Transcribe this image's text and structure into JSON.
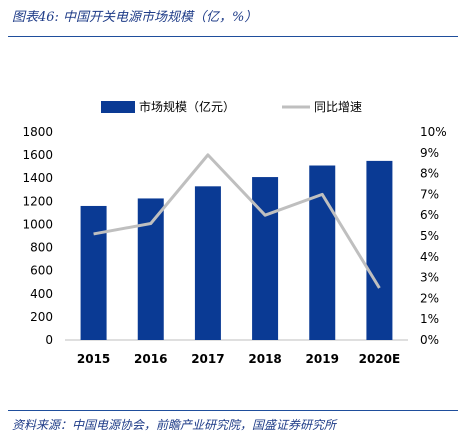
{
  "figure": {
    "title": "图表46: 中国开关电源市场规模（亿，%）",
    "source": "资料来源：中国电源协会，前瞻产业研究院，国盛证券研究所"
  },
  "chart_data": {
    "type": "bar",
    "categories": [
      "2015",
      "2016",
      "2017",
      "2018",
      "2019",
      "2020E"
    ],
    "series": [
      {
        "name": "市场规模（亿元）",
        "type": "bar",
        "axis": "left",
        "color": "#0a3a94",
        "values": [
          1160,
          1225,
          1330,
          1410,
          1510,
          1550
        ]
      },
      {
        "name": "同比增速",
        "type": "line",
        "axis": "right",
        "color": "#bfbfbf",
        "values": [
          5.1,
          5.6,
          8.9,
          6.0,
          7.0,
          2.5
        ]
      }
    ],
    "y_left": {
      "min": 0,
      "max": 1800,
      "step": 200,
      "ticks": [
        "0",
        "200",
        "400",
        "600",
        "800",
        "1000",
        "1200",
        "1400",
        "1600",
        "1800"
      ]
    },
    "y_right": {
      "min": 0,
      "max": 10,
      "step": 1,
      "ticks": [
        "0%",
        "1%",
        "2%",
        "3%",
        "4%",
        "5%",
        "6%",
        "7%",
        "8%",
        "9%",
        "10%"
      ]
    },
    "legend_position": "top-center",
    "grid": false
  }
}
